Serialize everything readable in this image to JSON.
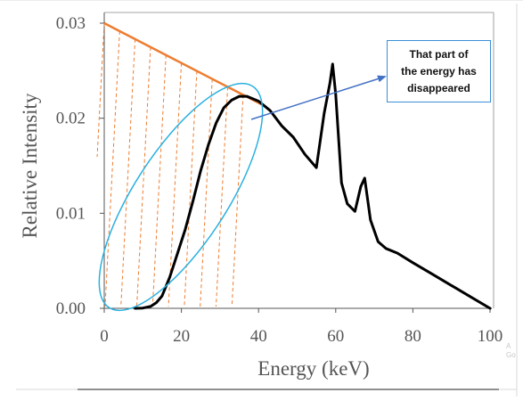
{
  "chart_data": {
    "type": "line",
    "title": "",
    "xlabel": "Energy (keV)",
    "ylabel": "Relative Intensity",
    "xlim": [
      0,
      100
    ],
    "ylim": [
      0,
      0.03
    ],
    "xticks": [
      "0",
      "20",
      "40",
      "60",
      "80",
      "100"
    ],
    "yticks": [
      "0.00",
      "0.01",
      "0.02",
      "0.03"
    ],
    "grid": false,
    "series": [
      {
        "color": "#000000",
        "x": [
          8,
          10,
          12,
          13.5,
          15,
          17,
          19,
          21,
          23,
          25,
          27,
          29,
          31,
          33,
          35,
          37,
          40,
          43,
          46,
          49,
          52,
          55,
          57,
          58.5,
          59.2,
          60,
          61.5,
          63,
          65,
          66.5,
          67.5,
          69,
          71,
          73,
          76,
          80,
          85,
          90,
          95,
          100
        ],
        "y": [
          0.0,
          3e-05,
          0.0002,
          0.0006,
          0.0013,
          0.0033,
          0.0058,
          0.0083,
          0.0113,
          0.0145,
          0.0172,
          0.0195,
          0.0211,
          0.0219,
          0.0223,
          0.0223,
          0.0218,
          0.0208,
          0.0192,
          0.018,
          0.0162,
          0.0148,
          0.0205,
          0.0237,
          0.0257,
          0.0225,
          0.0132,
          0.011,
          0.0102,
          0.0128,
          0.0137,
          0.0093,
          0.007,
          0.0063,
          0.0058,
          0.0048,
          0.0036,
          0.0024,
          0.0012,
          0.0
        ]
      }
    ],
    "annotations": {
      "estimated_line": {
        "color": "#ed7d31",
        "from": [
          0,
          0.03
        ],
        "to": [
          42,
          0.0212
        ]
      },
      "hatch_color": "#ed7d31",
      "ellipse_color": "#2ab0e0",
      "arrow_color": "#4472c4",
      "callout_text": [
        "That part of",
        "the energy has",
        "disappeared"
      ]
    }
  },
  "watermark": [
    "A",
    "Go"
  ]
}
